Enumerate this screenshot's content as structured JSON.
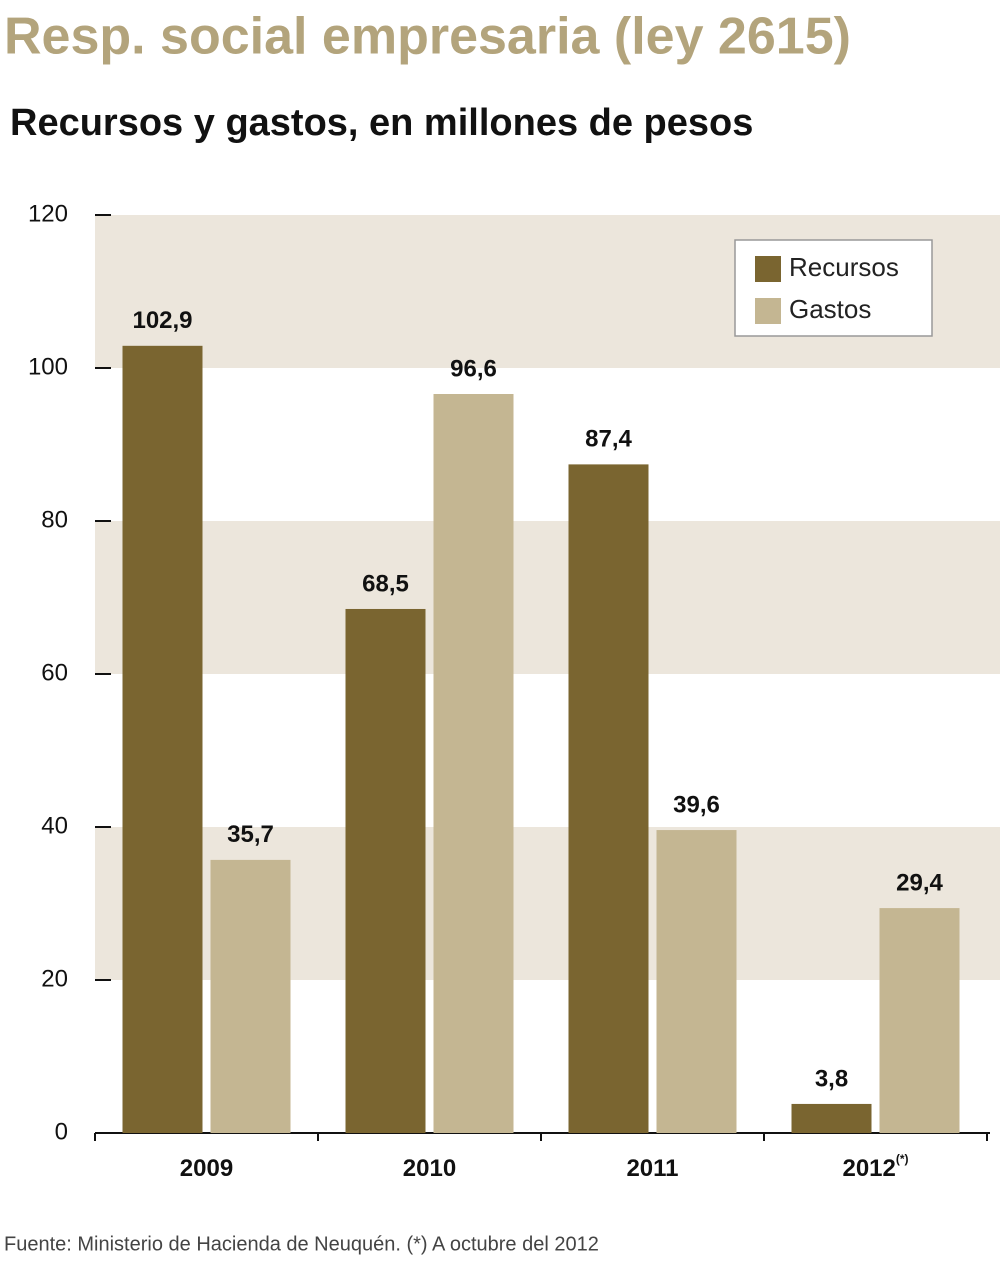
{
  "chart_data": {
    "type": "bar",
    "title": "Resp. social empresaria (ley 2615)",
    "subtitle": "Recursos y gastos, en millones de pesos",
    "source": "Fuente: Ministerio de Hacienda de Neuquén. (*) A octubre del 2012",
    "categories": [
      "2009",
      "2010",
      "2011",
      "2012"
    ],
    "category_superscripts": [
      null,
      null,
      null,
      "(*)"
    ],
    "series": [
      {
        "name": "Recursos",
        "color": "#7a6530",
        "values": [
          102.9,
          68.5,
          87.4,
          3.8
        ],
        "value_labels": [
          "102,9",
          "68,5",
          "87,4",
          "3,8"
        ]
      },
      {
        "name": "Gastos",
        "color": "#c4b692",
        "values": [
          35.7,
          96.6,
          39.6,
          29.4
        ],
        "value_labels": [
          "35,7",
          "96,6",
          "39,6",
          "29,4"
        ]
      }
    ],
    "ylim": [
      0,
      120
    ],
    "yticks": [
      0,
      20,
      40,
      60,
      80,
      100,
      120
    ],
    "bands": true,
    "band_color": "#ece6dc",
    "legend": "top-right"
  }
}
